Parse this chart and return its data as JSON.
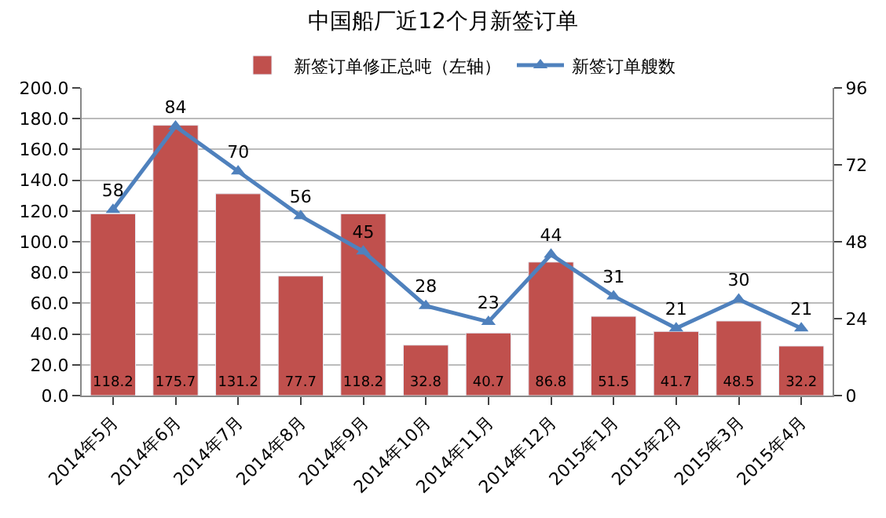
{
  "chart_data": {
    "type": "bar",
    "title": "中国船厂近12个月新签订单",
    "categories": [
      "2014年5月",
      "2014年6月",
      "2014年7月",
      "2014年8月",
      "2014年9月",
      "2014年10月",
      "2014年11月",
      "2014年12月",
      "2015年1月",
      "2015年2月",
      "2015年3月",
      "2015年4月"
    ],
    "series": [
      {
        "name": "新签订单修正总吨（左轴）",
        "color": "#c0504d",
        "values": [
          118.2,
          175.7,
          131.2,
          77.7,
          118.2,
          32.8,
          40.7,
          86.8,
          51.5,
          41.7,
          48.5,
          32.2
        ]
      },
      {
        "name": "新签订单艘数",
        "type": "line",
        "axis": "y2",
        "color": "#4f81bd",
        "marker": "triangle",
        "values": [
          58,
          84,
          70,
          56,
          45,
          28,
          23,
          44,
          31,
          21,
          30,
          21
        ]
      }
    ],
    "ylim": [
      0,
      200
    ],
    "yticks": [
      {
        "value": 0,
        "label": "0.0"
      },
      {
        "value": 20,
        "label": "20.0"
      },
      {
        "value": 40,
        "label": "40.0"
      },
      {
        "value": 60,
        "label": "60.0"
      },
      {
        "value": 80,
        "label": "80.0"
      },
      {
        "value": 100,
        "label": "100.0"
      },
      {
        "value": 120,
        "label": "120.0"
      },
      {
        "value": 140,
        "label": "140.0"
      },
      {
        "value": 160,
        "label": "160.0"
      },
      {
        "value": 180,
        "label": "180.0"
      },
      {
        "value": 200,
        "label": "200.0"
      }
    ],
    "y2lim": [
      0,
      96
    ],
    "y2ticks": [
      0,
      24,
      48,
      72,
      96
    ],
    "grid": "y",
    "legend": "top",
    "data_labels": true
  }
}
